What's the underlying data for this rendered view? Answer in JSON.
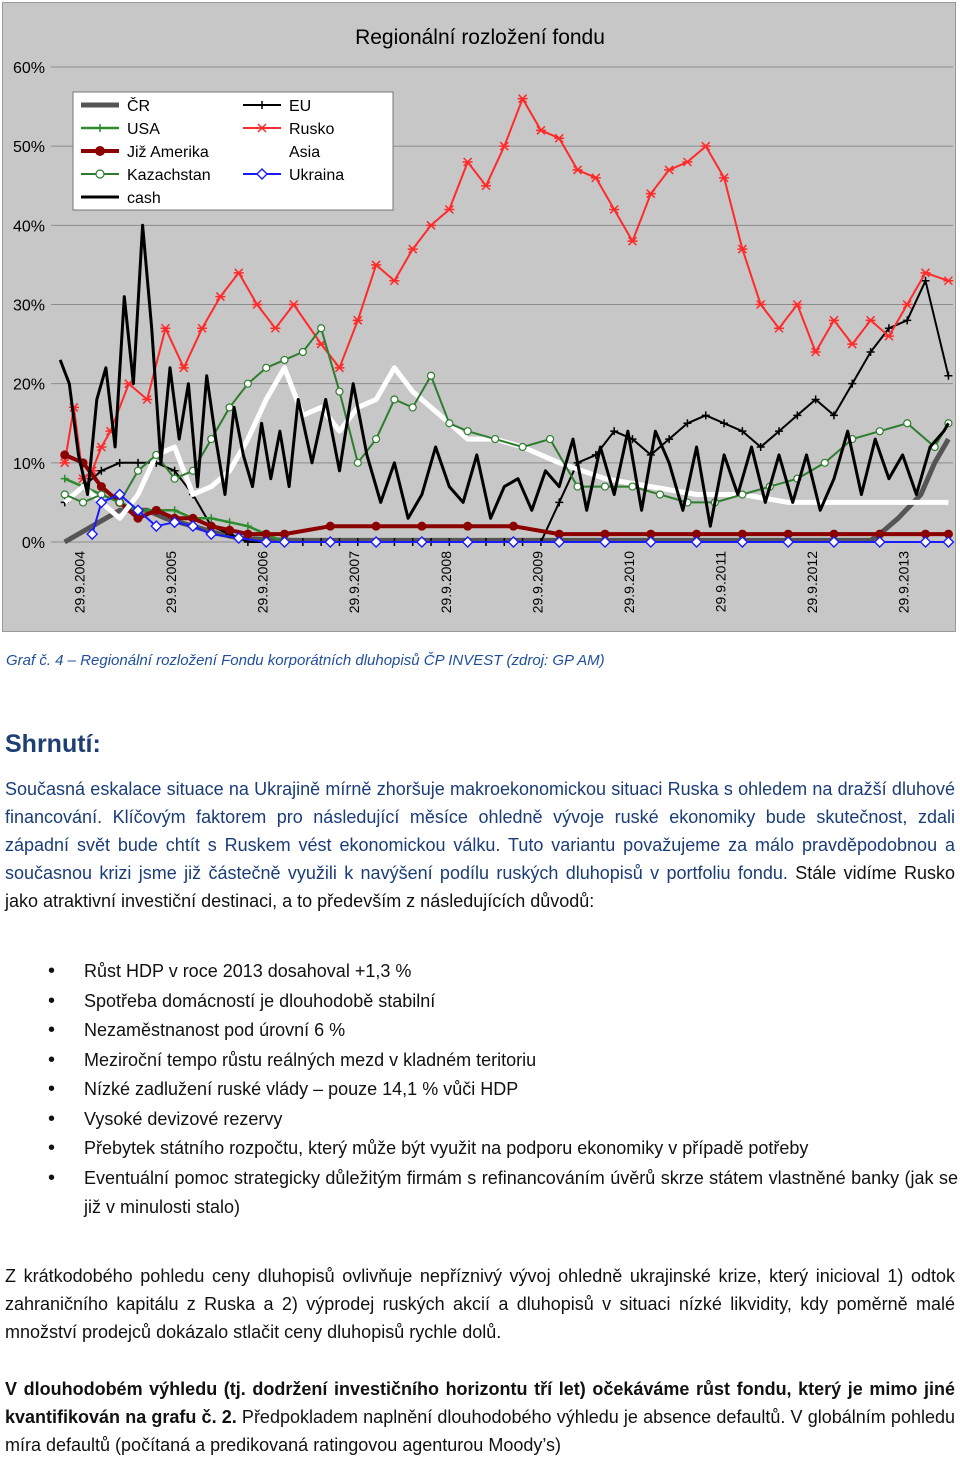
{
  "chart_data": {
    "type": "line",
    "title": "Regionální rozložení fondu",
    "y_ticks": [
      "60%",
      "50%",
      "40%",
      "30%",
      "20%",
      "10%",
      "0%"
    ],
    "ylim": [
      0,
      0.6
    ],
    "x_ticks": [
      "29.9.2004",
      "29.9.2005",
      "29.9.2006",
      "29.9.2007",
      "29.9.2008",
      "29.9.2009",
      "29.9.2010",
      "29.9.2011",
      "29.9.2012",
      "29.9.2013"
    ],
    "legend_position": "top-left",
    "grid": "horizontal",
    "series": [
      {
        "name": "ČR",
        "color": "#555555",
        "marker": "none",
        "x": [
          2004.6,
          2004.9,
          2005.2,
          2005.5,
          2005.7,
          2006.0,
          2006.3,
          2006.5,
          2006.8,
          2007.1,
          2007.5,
          2008.0,
          2008.5,
          2009.0,
          2009.5,
          2010.0,
          2010.5,
          2011.0,
          2011.5,
          2012.0,
          2012.5,
          2013.0,
          2013.4,
          2013.5,
          2013.7,
          2013.95,
          2014.1,
          2014.25
        ],
        "values": [
          0.0,
          0.02,
          0.04,
          0.04,
          0.03,
          0.02,
          0.01,
          0.005,
          0.003,
          0.002,
          0.002,
          0.002,
          0.002,
          0.002,
          0.002,
          0.002,
          0.002,
          0.002,
          0.002,
          0.002,
          0.002,
          0.002,
          0.002,
          0.01,
          0.03,
          0.06,
          0.1,
          0.13
        ]
      },
      {
        "name": "EU",
        "color": "#000000",
        "marker": "plus",
        "x": [
          2004.6,
          2004.8,
          2005.0,
          2005.2,
          2005.4,
          2005.6,
          2005.8,
          2006.0,
          2006.2,
          2006.4,
          2006.6,
          2006.8,
          2007.0,
          2007.2,
          2007.4,
          2007.6,
          2007.8,
          2008.0,
          2008.2,
          2008.4,
          2008.6,
          2008.8,
          2009.0,
          2009.2,
          2009.4,
          2009.6,
          2009.8,
          2010.0,
          2010.2,
          2010.4,
          2010.6,
          2010.8,
          2011.0,
          2011.2,
          2011.4,
          2011.6,
          2011.8,
          2012.0,
          2012.2,
          2012.4,
          2012.6,
          2012.8,
          2013.0,
          2013.2,
          2013.4,
          2013.6,
          2013.8,
          2014.0,
          2014.25
        ],
        "values": [
          0.05,
          0.07,
          0.09,
          0.1,
          0.1,
          0.1,
          0.09,
          0.06,
          0.02,
          0.01,
          0.0,
          0.0,
          0.0,
          0.0,
          0.0,
          0.0,
          0.0,
          0.0,
          0.0,
          0.0,
          0.0,
          0.0,
          0.0,
          0.0,
          0.0,
          0.0,
          0.0,
          0.05,
          0.1,
          0.11,
          0.14,
          0.13,
          0.11,
          0.13,
          0.15,
          0.16,
          0.15,
          0.14,
          0.12,
          0.14,
          0.16,
          0.18,
          0.16,
          0.2,
          0.24,
          0.27,
          0.28,
          0.33,
          0.21
        ]
      },
      {
        "name": "USA",
        "color": "#2e8b2e",
        "marker": "plus",
        "x": [
          2004.6,
          2004.8,
          2005.0,
          2005.2,
          2005.4,
          2005.6,
          2005.8,
          2006.0,
          2006.2,
          2006.4,
          2006.6,
          2006.8,
          2007.0
        ],
        "values": [
          0.08,
          0.07,
          0.06,
          0.05,
          0.04,
          0.04,
          0.04,
          0.03,
          0.03,
          0.025,
          0.02,
          0.01,
          0.0
        ]
      },
      {
        "name": "Rusko",
        "color": "#ff2a2a",
        "marker": "star",
        "x": [
          2004.6,
          2004.7,
          2004.8,
          2004.9,
          2005.0,
          2005.1,
          2005.3,
          2005.5,
          2005.7,
          2005.9,
          2006.1,
          2006.3,
          2006.5,
          2006.7,
          2006.9,
          2007.1,
          2007.4,
          2007.6,
          2007.8,
          2008.0,
          2008.2,
          2008.4,
          2008.6,
          2008.8,
          2009.0,
          2009.2,
          2009.4,
          2009.6,
          2009.8,
          2010.0,
          2010.2,
          2010.4,
          2010.6,
          2010.8,
          2011.0,
          2011.2,
          2011.4,
          2011.6,
          2011.8,
          2012.0,
          2012.2,
          2012.4,
          2012.6,
          2012.8,
          2013.0,
          2013.2,
          2013.4,
          2013.6,
          2013.8,
          2014.0,
          2014.25
        ],
        "values": [
          0.1,
          0.17,
          0.08,
          0.09,
          0.12,
          0.14,
          0.2,
          0.18,
          0.27,
          0.22,
          0.27,
          0.31,
          0.34,
          0.3,
          0.27,
          0.3,
          0.25,
          0.22,
          0.28,
          0.35,
          0.33,
          0.37,
          0.4,
          0.42,
          0.48,
          0.45,
          0.5,
          0.56,
          0.52,
          0.51,
          0.47,
          0.46,
          0.42,
          0.38,
          0.44,
          0.47,
          0.48,
          0.5,
          0.46,
          0.37,
          0.3,
          0.27,
          0.3,
          0.24,
          0.28,
          0.25,
          0.28,
          0.26,
          0.3,
          0.34,
          0.33
        ]
      },
      {
        "name": "Již Amerika",
        "color": "#8b0000",
        "marker": "circle",
        "x": [
          2004.6,
          2004.8,
          2005.0,
          2005.2,
          2005.4,
          2005.6,
          2005.8,
          2006.0,
          2006.2,
          2006.4,
          2006.6,
          2006.8,
          2007.0,
          2007.5,
          2008.0,
          2008.5,
          2009.0,
          2009.5,
          2010.0,
          2010.5,
          2011.0,
          2011.5,
          2012.0,
          2012.5,
          2013.0,
          2013.5,
          2014.0,
          2014.25
        ],
        "values": [
          0.11,
          0.1,
          0.07,
          0.05,
          0.03,
          0.04,
          0.03,
          0.03,
          0.02,
          0.015,
          0.01,
          0.01,
          0.01,
          0.02,
          0.02,
          0.02,
          0.02,
          0.02,
          0.01,
          0.01,
          0.01,
          0.01,
          0.01,
          0.01,
          0.01,
          0.01,
          0.01,
          0.01
        ]
      },
      {
        "name": "Asia",
        "color": "#ffffff",
        "marker": "none",
        "x": [
          2004.6,
          2004.8,
          2005.0,
          2005.2,
          2005.4,
          2005.6,
          2005.8,
          2006.0,
          2006.2,
          2006.4,
          2006.6,
          2006.8,
          2007.0,
          2007.2,
          2007.4,
          2007.6,
          2007.8,
          2008.0,
          2008.2,
          2008.4,
          2008.6,
          2008.8,
          2009.0,
          2009.3,
          2009.6,
          2010.0,
          2010.5,
          2011.0,
          2011.5,
          2012.0,
          2012.5,
          2013.0,
          2013.5,
          2014.0,
          2014.25
        ],
        "values": [
          0.05,
          0.07,
          0.05,
          0.03,
          0.06,
          0.11,
          0.12,
          0.06,
          0.07,
          0.09,
          0.13,
          0.18,
          0.22,
          0.16,
          0.17,
          0.14,
          0.17,
          0.18,
          0.22,
          0.19,
          0.17,
          0.15,
          0.13,
          0.13,
          0.12,
          0.1,
          0.08,
          0.07,
          0.06,
          0.06,
          0.05,
          0.05,
          0.05,
          0.05,
          0.05
        ]
      },
      {
        "name": "Kazachstan",
        "color": "#2e7d2e",
        "marker": "open-circle",
        "x": [
          2004.6,
          2004.8,
          2005.0,
          2005.2,
          2005.4,
          2005.6,
          2005.8,
          2006.0,
          2006.2,
          2006.4,
          2006.6,
          2006.8,
          2007.0,
          2007.2,
          2007.4,
          2007.6,
          2007.8,
          2008.0,
          2008.2,
          2008.4,
          2008.6,
          2008.8,
          2009.0,
          2009.3,
          2009.6,
          2009.9,
          2010.2,
          2010.5,
          2010.8,
          2011.1,
          2011.4,
          2011.7,
          2012.0,
          2012.3,
          2012.6,
          2012.9,
          2013.2,
          2013.5,
          2013.8,
          2014.1,
          2014.25
        ],
        "values": [
          0.06,
          0.05,
          0.06,
          0.05,
          0.09,
          0.11,
          0.08,
          0.09,
          0.13,
          0.17,
          0.2,
          0.22,
          0.23,
          0.24,
          0.27,
          0.19,
          0.1,
          0.13,
          0.18,
          0.17,
          0.21,
          0.15,
          0.14,
          0.13,
          0.12,
          0.13,
          0.07,
          0.07,
          0.07,
          0.06,
          0.05,
          0.05,
          0.06,
          0.07,
          0.08,
          0.1,
          0.13,
          0.14,
          0.15,
          0.12,
          0.15
        ]
      },
      {
        "name": "Ukraina",
        "color": "#1a1aff",
        "marker": "diamond",
        "x": [
          2004.9,
          2005.0,
          2005.2,
          2005.4,
          2005.6,
          2005.8,
          2006.0,
          2006.2,
          2006.5,
          2006.8,
          2007.0,
          2007.5,
          2008.0,
          2008.5,
          2009.0,
          2009.5,
          2010.0,
          2010.5,
          2011.0,
          2011.5,
          2012.0,
          2012.5,
          2013.0,
          2013.5,
          2014.0,
          2014.25
        ],
        "values": [
          0.01,
          0.05,
          0.06,
          0.04,
          0.02,
          0.025,
          0.02,
          0.01,
          0.005,
          0.0,
          0.0,
          0.0,
          0.0,
          0.0,
          0.0,
          0.0,
          0.0,
          0.0,
          0.0,
          0.0,
          0.0,
          0.0,
          0.0,
          0.0,
          0.0,
          0.0
        ]
      },
      {
        "name": "cash",
        "color": "#000000",
        "marker": "none",
        "x": [
          2004.55,
          2004.65,
          2004.75,
          2004.85,
          2004.95,
          2005.05,
          2005.15,
          2005.25,
          2005.35,
          2005.45,
          2005.55,
          2005.65,
          2005.75,
          2005.85,
          2005.95,
          2006.05,
          2006.15,
          2006.25,
          2006.35,
          2006.45,
          2006.55,
          2006.65,
          2006.75,
          2006.85,
          2006.95,
          2007.05,
          2007.15,
          2007.3,
          2007.45,
          2007.6,
          2007.75,
          2007.9,
          2008.05,
          2008.2,
          2008.35,
          2008.5,
          2008.65,
          2008.8,
          2008.95,
          2009.1,
          2009.25,
          2009.4,
          2009.55,
          2009.7,
          2009.85,
          2010.0,
          2010.15,
          2010.3,
          2010.45,
          2010.6,
          2010.75,
          2010.9,
          2011.05,
          2011.2,
          2011.35,
          2011.5,
          2011.65,
          2011.8,
          2011.95,
          2012.1,
          2012.25,
          2012.4,
          2012.55,
          2012.7,
          2012.85,
          2013.0,
          2013.15,
          2013.3,
          2013.45,
          2013.6,
          2013.75,
          2013.9,
          2014.05,
          2014.2,
          2014.25
        ],
        "values": [
          0.23,
          0.2,
          0.11,
          0.06,
          0.18,
          0.22,
          0.12,
          0.31,
          0.2,
          0.4,
          0.27,
          0.1,
          0.22,
          0.13,
          0.2,
          0.07,
          0.21,
          0.13,
          0.06,
          0.17,
          0.11,
          0.07,
          0.15,
          0.08,
          0.14,
          0.07,
          0.18,
          0.1,
          0.18,
          0.09,
          0.2,
          0.11,
          0.05,
          0.1,
          0.03,
          0.06,
          0.12,
          0.07,
          0.05,
          0.11,
          0.03,
          0.07,
          0.08,
          0.04,
          0.09,
          0.07,
          0.13,
          0.04,
          0.12,
          0.06,
          0.14,
          0.04,
          0.14,
          0.1,
          0.04,
          0.12,
          0.02,
          0.11,
          0.06,
          0.12,
          0.05,
          0.11,
          0.05,
          0.11,
          0.04,
          0.08,
          0.14,
          0.06,
          0.13,
          0.08,
          0.11,
          0.06,
          0.12,
          0.14,
          0.15
        ]
      }
    ]
  },
  "caption": "Graf č. 4 – Regionální rozložení Fondu korporátních dluhopisů ČP INVEST (zdroj: GP AM)",
  "summary_heading": "Shrnutí:",
  "para1": {
    "p1": "Současná eskalace situace na Ukrajině mírně zhoršuje makroekonomickou situaci Ruska s ohledem na dražší dluhové financování. Klíčovým faktorem pro následující měsíce ohledně vývoje ruské ekonomiky bude skutečnost, zdali západní svět bude chtít s Ruskem vést ekonomickou válku. Tuto variantu považujeme za málo pravděpodobnou a současnou krizi jsme již částečně využili k navýšení podílu ruských dluhopisů v portfoliu fondu.",
    "p2": " Stále vidíme Rusko jako atraktivní investiční destinaci, a to především z následujících důvodů:"
  },
  "bullets": [
    "Růst HDP v roce 2013 dosahoval +1,3 %",
    "Spotřeba domácností je dlouhodobě stabilní",
    "Nezaměstnanost pod úrovní 6 %",
    "Meziroční tempo růstu reálných mezd v kladném teritoriu",
    "Nízké zadlužení ruské vlády – pouze 14,1 % vůči HDP",
    "Vysoké devizové rezervy",
    "Přebytek státního rozpočtu, který může být využit na podporu ekonomiky v případě potřeby",
    "Eventuální pomoc strategicky důležitým firmám s refinancováním úvěrů skrze státem vlastněné banky (jak se již v minulosti stalo)"
  ],
  "para2": "Z krátkodobého pohledu ceny dluhopisů ovlivňuje nepříznivý vývoj ohledně ukrajinské krize, který inicioval 1) odtok zahraničního kapitálu z Ruska a 2) výprodej ruských akcií a dluhopisů v situaci nízké likvidity, kdy poměrně malé množství prodejců dokázalo stlačit ceny dluhopisů rychle dolů.",
  "para3": {
    "bold": "V dlouhodobém výhledu (tj. dodržení investičního horizontu tří let) očekáváme růst fondu, který je mimo jiné kvantifikován na grafu č. 2.",
    "rest": " Předpokladem naplnění dlouhodobého výhledu je absence defaultů. V globálním pohledu míra defaultů (počítaná a predikovaná ratingovou agenturou Moody’s)"
  }
}
